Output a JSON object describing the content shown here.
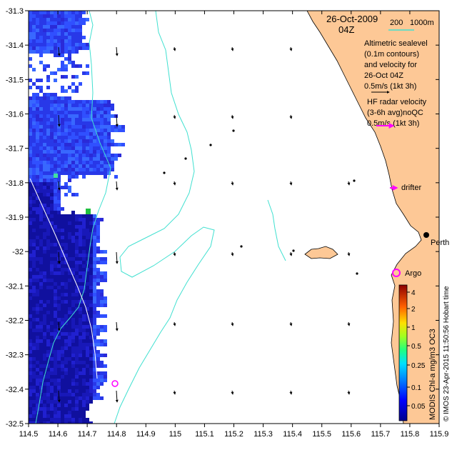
{
  "title": {
    "date": "26-Oct-2009",
    "time": "04Z"
  },
  "depth_legend": {
    "a": "200",
    "b": "1000m"
  },
  "altimetry_legend": [
    "Altimetric sealevel",
    "(0.1m contours)",
    "and velocity for",
    "26-Oct 04Z",
    "0.5m/s (1kt 3h)"
  ],
  "hf_legend": [
    "HF radar velocity",
    "(3-6h avg)noQC",
    "0.5m/s (1kt 3h)"
  ],
  "labels": {
    "drifter": "drifter",
    "perth": "Perth",
    "argo": "Argo"
  },
  "colorbar": {
    "ticks": [
      "4",
      "2",
      "1",
      "0.5",
      "0.25",
      "0.1",
      "0.05"
    ],
    "label": "MODIS Chl-a mg/m3 OC3"
  },
  "credit": "© IMOS 23-Apr-2015 11:50:56 Hobart time",
  "axes": {
    "x_ticks": [
      "114.5",
      "114.6",
      "114.7",
      "114.8",
      "114.9",
      "115",
      "115.1",
      "115.2",
      "115.3",
      "115.4",
      "115.5",
      "115.6",
      "115.7",
      "115.8",
      "115.9"
    ],
    "y_ticks": [
      "-31.3",
      "-31.4",
      "-31.5",
      "-31.6",
      "-31.7",
      "-31.8",
      "-31.9",
      "-32",
      "-32.1",
      "-32.2",
      "-32.3",
      "-32.4",
      "-32.5"
    ]
  },
  "colors": {
    "land": "#fdc896",
    "contour": "#40e0d0",
    "hf_arrow": "#ff00ff",
    "argo": "#ff00ff"
  }
}
